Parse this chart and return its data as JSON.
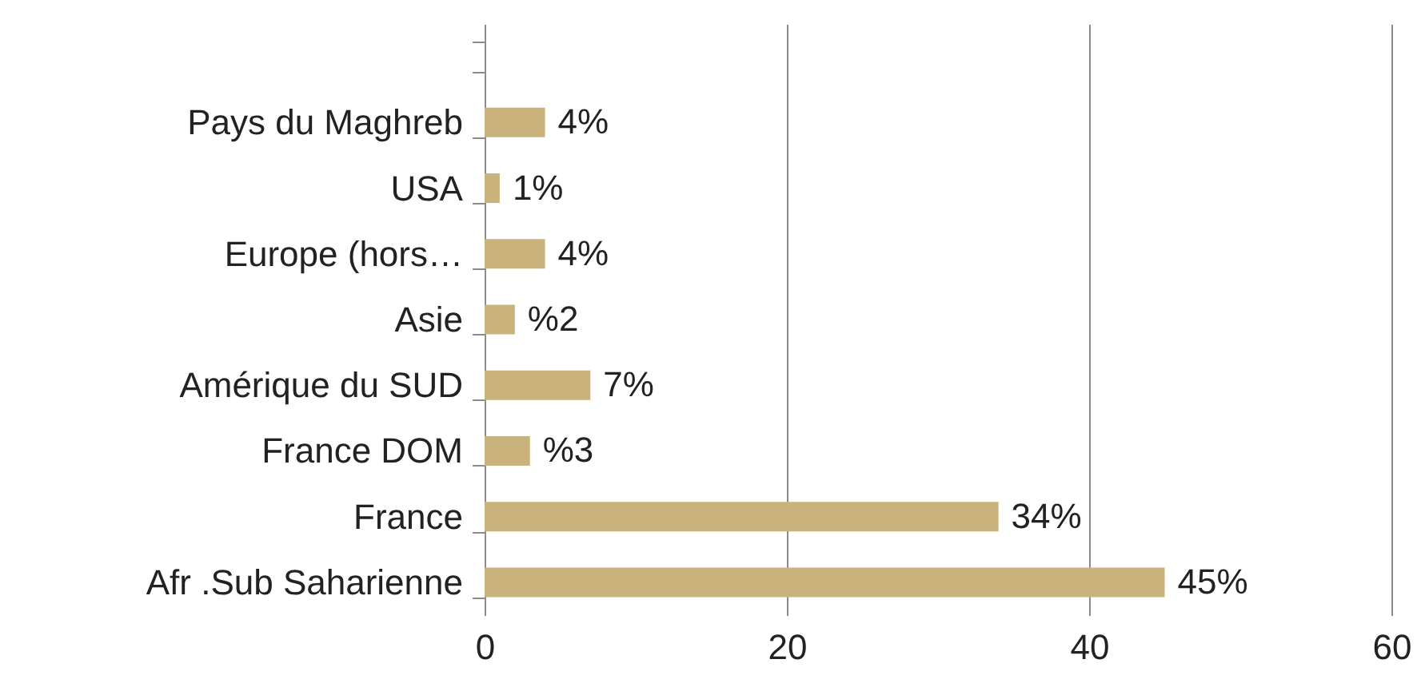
{
  "chart_data": {
    "type": "bar",
    "orientation": "horizontal",
    "categories": [
      null,
      "Pays du Maghreb",
      "USA",
      "Europe (hors…",
      "Asie",
      "Amérique du  SUD",
      "France DOM",
      "France",
      "Afr .Sub Saharienne"
    ],
    "values": [
      null,
      4,
      1,
      4,
      2,
      7,
      3,
      34,
      45
    ],
    "value_labels": [
      null,
      "4%",
      "1%",
      "4%",
      "%2",
      "7%",
      "%3",
      "34%",
      "45%"
    ],
    "color": "#c9b27c",
    "xlim": [
      0,
      60
    ],
    "xticks": [
      0,
      20,
      40,
      60
    ],
    "grid": "x"
  }
}
